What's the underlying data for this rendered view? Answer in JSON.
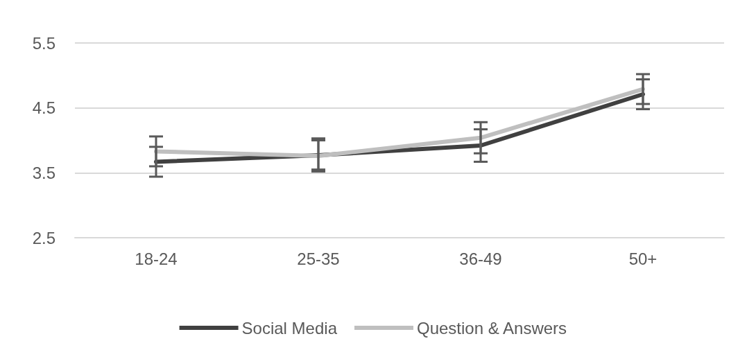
{
  "chart_data": {
    "type": "line",
    "categories": [
      "18-24",
      "25-35",
      "36-49",
      "50+"
    ],
    "series": [
      {
        "name": "Social Media",
        "color": "#404040",
        "values": [
          3.67,
          3.77,
          3.92,
          4.71
        ],
        "errors": [
          0.23,
          [
            3.52,
            4.03
          ],
          0.25,
          0.23
        ]
      },
      {
        "name": "Question & Answers",
        "color": "#bfbfbf",
        "values": [
          3.83,
          3.76,
          4.04,
          4.79
        ],
        "errors": [
          0.23,
          [
            3.55,
            4.0
          ],
          0.24,
          0.23
        ]
      }
    ],
    "ylim": [
      2.5,
      5.5
    ],
    "yticks": [
      2.5,
      3.5,
      4.5,
      5.5
    ],
    "grid": "y",
    "legend": "bottom",
    "marker": "none",
    "line_style": "solid"
  }
}
